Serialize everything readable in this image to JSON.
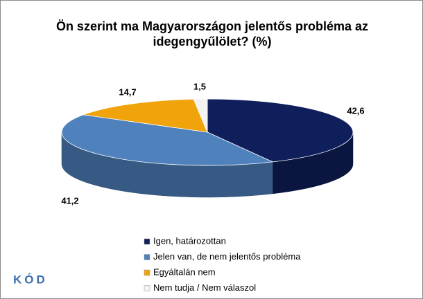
{
  "chart_data": {
    "type": "pie",
    "title": "Ön szerint ma Magyarországon jelentős probléma az idegengyűlölet? (%)",
    "categories": [
      "Igen, határozottan",
      "Jelen van, de nem jelentős probléma",
      "Egyáltalán nem",
      "Nem tudja / Nem válaszol"
    ],
    "values": [
      42.6,
      41.2,
      14.7,
      1.5
    ],
    "value_labels": [
      "42,6",
      "41,2",
      "14,7",
      "1,5"
    ],
    "colors": [
      "#0f1f5c",
      "#4f81bd",
      "#f0a30a",
      "#f2f2f2"
    ]
  },
  "logo": "KÓD"
}
